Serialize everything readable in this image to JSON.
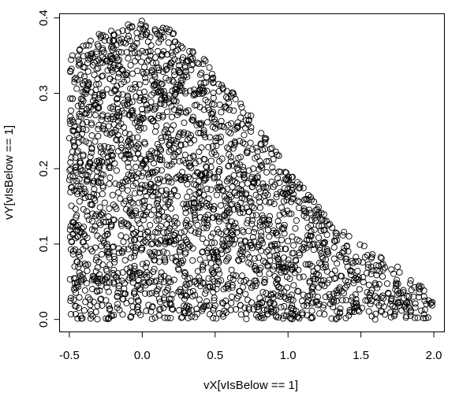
{
  "chart_data": {
    "type": "scatter",
    "xlabel": "vX[vIsBelow == 1]",
    "ylabel": "vY[vIsBelow == 1]",
    "xlim": [
      -0.57,
      2.07
    ],
    "ylim": [
      -0.016,
      0.406
    ],
    "x_ticks": [
      "-0.5",
      "0.0",
      "0.5",
      "1.0",
      "1.5",
      "2.0"
    ],
    "y_ticks": [
      "0.0",
      "0.1",
      "0.2",
      "0.3",
      "0.4"
    ],
    "marker": "open-circle",
    "region_description_points": {
      "upper_boundary": [
        {
          "x": -0.5,
          "y": 0.35
        },
        {
          "x": -0.25,
          "y": 0.385
        },
        {
          "x": 0.0,
          "y": 0.398
        },
        {
          "x": 0.25,
          "y": 0.38
        },
        {
          "x": 0.5,
          "y": 0.33
        },
        {
          "x": 0.75,
          "y": 0.27
        },
        {
          "x": 1.0,
          "y": 0.2
        },
        {
          "x": 1.25,
          "y": 0.14
        },
        {
          "x": 1.5,
          "y": 0.1
        },
        {
          "x": 1.75,
          "y": 0.07
        },
        {
          "x": 2.0,
          "y": 0.03
        }
      ],
      "x_range": [
        -0.5,
        2.0
      ],
      "y_min": 0.0
    },
    "approx_point_count": 2600
  }
}
